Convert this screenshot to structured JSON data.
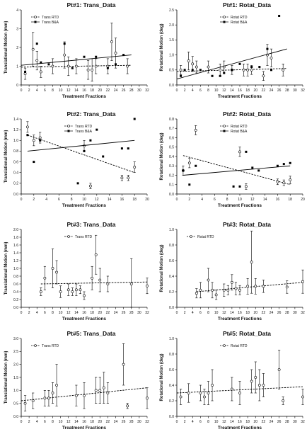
{
  "chart_data": [
    {
      "type": "scatter",
      "title": "Pt#1: Trans_Data",
      "xlabel": "Treatment Fractions",
      "ylabel": "Translational Motion (mm)",
      "xlim": [
        0,
        32
      ],
      "ylim": [
        0,
        4
      ],
      "xticks": [
        0,
        2,
        4,
        6,
        8,
        10,
        12,
        14,
        16,
        18,
        20,
        22,
        24,
        26,
        28,
        30,
        32
      ],
      "yticks": [
        0,
        1,
        2,
        3,
        4
      ],
      "legend": "top-left",
      "series": [
        {
          "name": "Trans RTD",
          "marker": "open-circle",
          "x": [
            1,
            3,
            4,
            5,
            8,
            11,
            12,
            14,
            17,
            18,
            19,
            22,
            23,
            24,
            27
          ],
          "y": [
            0.6,
            1.9,
            1.3,
            0.7,
            1.0,
            1.6,
            1.0,
            1.0,
            0.8,
            0.8,
            1.0,
            1.0,
            2.3,
            1.7,
            1.0
          ],
          "err": [
            0.3,
            0.9,
            0.5,
            0.3,
            0.4,
            0.7,
            0.5,
            0.4,
            0.5,
            0.6,
            0.4,
            0.4,
            1.0,
            0.8,
            0.4
          ],
          "trend": [
            [
              0,
              0.95
            ],
            [
              28,
              1.05
            ]
          ],
          "trend_style": "dashed"
        },
        {
          "name": "Trans B&A",
          "marker": "filled-square",
          "x": [
            1,
            4,
            5,
            7,
            11,
            13,
            16,
            19,
            22,
            24,
            26
          ],
          "y": [
            0.7,
            2.2,
            1.2,
            1.1,
            2.2,
            0.9,
            1.5,
            1.5,
            0.9,
            1.1,
            1.6
          ],
          "trend": [
            [
              0,
              1.05
            ],
            [
              28,
              1.6
            ]
          ],
          "trend_style": "solid"
        }
      ]
    },
    {
      "type": "scatter",
      "title": "Pt#1: Rotat_Data",
      "xlabel": "Treatment Fractions",
      "ylabel": "Rotational Motion (deg)",
      "xlim": [
        0,
        32
      ],
      "ylim": [
        0,
        2.5
      ],
      "xticks": [
        0,
        2,
        4,
        6,
        8,
        10,
        12,
        14,
        16,
        18,
        20,
        22,
        24,
        26,
        28,
        30,
        32
      ],
      "yticks": [
        0.0,
        0.5,
        1.0,
        1.5,
        2.0,
        2.5
      ],
      "legend": "top-center",
      "series": [
        {
          "name": "Rotat RTD",
          "marker": "open-circle",
          "x": [
            1,
            3,
            4,
            5,
            8,
            11,
            12,
            14,
            17,
            18,
            19,
            22,
            23,
            24,
            27
          ],
          "y": [
            0.5,
            0.8,
            0.7,
            0.6,
            0.6,
            0.5,
            0.6,
            0.5,
            0.5,
            0.5,
            0.5,
            0.3,
            1.0,
            0.9,
            0.5
          ],
          "err": [
            0.15,
            0.3,
            0.25,
            0.2,
            0.2,
            0.2,
            0.2,
            0.15,
            0.2,
            0.2,
            0.15,
            0.15,
            0.35,
            0.3,
            0.2
          ],
          "trend": [
            [
              0,
              0.45
            ],
            [
              28,
              0.55
            ]
          ],
          "trend_style": "dashed"
        },
        {
          "name": "Rotat B&A",
          "marker": "filled-square",
          "x": [
            1,
            2,
            4,
            6,
            9,
            11,
            12,
            14,
            16,
            19,
            21,
            23,
            24,
            26
          ],
          "y": [
            0.3,
            0.5,
            0.5,
            0.5,
            0.3,
            0.3,
            0.4,
            0.5,
            0.7,
            0.6,
            0.6,
            1.2,
            0.5,
            2.3
          ],
          "trend": [
            [
              0,
              0.2
            ],
            [
              28,
              1.2
            ]
          ],
          "trend_style": "solid"
        }
      ]
    },
    {
      "type": "scatter",
      "title": "Pt#2: Trans_Data",
      "xlabel": "Treatment Fractions",
      "ylabel": "Translational Motion (mm)",
      "xlim": [
        0,
        20
      ],
      "ylim": [
        0,
        1.4
      ],
      "xticks": [
        0,
        2,
        4,
        6,
        8,
        10,
        12,
        14,
        16,
        18,
        20
      ],
      "yticks": [
        0.0,
        0.2,
        0.4,
        0.6,
        0.8,
        1.0,
        1.2,
        1.4
      ],
      "legend": "top-center",
      "series": [
        {
          "name": "Trans RTD",
          "marker": "open-circle",
          "x": [
            1,
            2,
            3,
            10,
            11,
            16,
            17,
            18
          ],
          "y": [
            1.25,
            1.0,
            1.05,
            0.9,
            0.15,
            0.3,
            0.3,
            0.5
          ],
          "err": [
            0.1,
            0.1,
            0.1,
            0.1,
            0.05,
            0.05,
            0.05,
            0.1
          ],
          "trend": [
            [
              1,
              1.1
            ],
            [
              18,
              0.4
            ]
          ],
          "trend_style": "dashed"
        },
        {
          "name": "Trans B&A",
          "marker": "filled-square",
          "x": [
            1,
            2,
            3,
            9,
            10,
            11,
            12,
            13,
            16,
            17,
            18
          ],
          "y": [
            1.1,
            0.6,
            1.0,
            0.2,
            0.8,
            1.0,
            1.2,
            0.7,
            0.85,
            0.85,
            1.45
          ],
          "trend": [
            [
              1,
              0.8
            ],
            [
              18,
              1.0
            ]
          ],
          "trend_style": "solid"
        }
      ]
    },
    {
      "type": "scatter",
      "title": "Pt#2: Rotat_Data",
      "xlabel": "Treatment Fractions",
      "ylabel": "Rotational Motion (deg)",
      "xlim": [
        0,
        20
      ],
      "ylim": [
        0,
        0.8
      ],
      "xticks": [
        0,
        2,
        4,
        6,
        8,
        10,
        12,
        14,
        16,
        18,
        20
      ],
      "yticks": [
        0.0,
        0.1,
        0.2,
        0.3,
        0.4,
        0.5,
        0.6,
        0.7,
        0.8
      ],
      "legend": "top-center",
      "series": [
        {
          "name": "Rotat RTD",
          "marker": "open-circle",
          "x": [
            1,
            2,
            3,
            10,
            11,
            16,
            17,
            18
          ],
          "y": [
            0.25,
            0.33,
            0.68,
            0.45,
            0.08,
            0.13,
            0.12,
            0.15
          ],
          "err": [
            0.05,
            0.05,
            0.05,
            0.05,
            0.03,
            0.03,
            0.03,
            0.04
          ],
          "trend": [
            [
              1,
              0.41
            ],
            [
              18,
              0.1
            ]
          ],
          "trend_style": "dashed"
        },
        {
          "name": "Rotat B&A",
          "marker": "filled-square",
          "x": [
            1,
            2,
            3,
            9,
            10,
            11,
            12,
            13,
            16,
            17,
            18
          ],
          "y": [
            0.25,
            0.1,
            0.3,
            0.08,
            0.08,
            0.45,
            0.28,
            0.25,
            0.3,
            0.32,
            0.33
          ],
          "trend": [
            [
              1,
              0.2
            ],
            [
              18,
              0.3
            ]
          ],
          "trend_style": "solid"
        }
      ]
    },
    {
      "type": "scatter",
      "title": "Pt#3: Trans_Data",
      "xlabel": "Treatment Fractions",
      "ylabel": "Translational Motion (mm)",
      "xlim": [
        0,
        32
      ],
      "ylim": [
        0,
        2.0
      ],
      "xticks": [
        0,
        2,
        4,
        6,
        8,
        10,
        12,
        14,
        16,
        18,
        20,
        22,
        24,
        26,
        28,
        30,
        32
      ],
      "yticks": [
        0.0,
        0.2,
        0.4,
        0.6,
        0.8,
        1.0,
        1.2,
        1.4,
        1.6,
        1.8,
        2.0
      ],
      "legend": "top-center",
      "series": [
        {
          "name": "Trans RTD",
          "marker": "open-circle",
          "x": [
            5,
            6,
            8,
            9,
            10,
            12,
            13,
            14,
            15,
            16,
            18,
            19,
            20,
            22,
            28,
            32
          ],
          "y": [
            0.4,
            0.75,
            1.0,
            0.9,
            0.4,
            0.45,
            0.4,
            0.45,
            0.45,
            0.3,
            0.75,
            1.35,
            0.7,
            0.6,
            0.6,
            0.55
          ],
          "err": [
            0.1,
            0.3,
            0.5,
            0.3,
            0.15,
            0.15,
            0.1,
            0.15,
            0.1,
            0.1,
            0.3,
            0.5,
            0.3,
            0.2,
            0.65,
            0.2
          ],
          "trend": [
            [
              5,
              0.6
            ],
            [
              32,
              0.65
            ]
          ],
          "trend_style": "dashed"
        }
      ]
    },
    {
      "type": "scatter",
      "title": "Pt#3: Rotat_Data",
      "xlabel": "Treatment Fractions",
      "ylabel": "Rotational Motion (deg)",
      "xlim": [
        0,
        32
      ],
      "ylim": [
        0,
        1.0
      ],
      "xticks": [
        0,
        2,
        4,
        6,
        8,
        10,
        12,
        14,
        16,
        18,
        20,
        22,
        24,
        26,
        28,
        30,
        32
      ],
      "yticks": [
        0.0,
        0.2,
        0.4,
        0.6,
        0.8,
        1.0
      ],
      "legend": "top-left",
      "series": [
        {
          "name": "Rotat RTD",
          "marker": "open-circle",
          "x": [
            5,
            6,
            8,
            9,
            10,
            12,
            13,
            14,
            15,
            16,
            18,
            19,
            20,
            22,
            28,
            32
          ],
          "y": [
            0.18,
            0.22,
            0.35,
            0.22,
            0.16,
            0.22,
            0.22,
            0.32,
            0.24,
            0.22,
            0.27,
            0.58,
            0.27,
            0.27,
            0.26,
            0.33
          ],
          "err": [
            0.06,
            0.1,
            0.15,
            0.1,
            0.06,
            0.08,
            0.06,
            0.1,
            0.08,
            0.06,
            0.1,
            0.4,
            0.1,
            0.08,
            0.08,
            0.15
          ],
          "trend": [
            [
              5,
              0.2
            ],
            [
              32,
              0.32
            ]
          ],
          "trend_style": "dashed"
        }
      ]
    },
    {
      "type": "scatter",
      "title": "Pt#5: Trans_Data",
      "xlabel": "Treatment Fractions",
      "ylabel": "Translational Motion (mm)",
      "xlim": [
        0,
        32
      ],
      "ylim": [
        0,
        3.0
      ],
      "xticks": [
        0,
        2,
        4,
        6,
        8,
        10,
        12,
        14,
        16,
        18,
        20,
        22,
        24,
        26,
        28,
        30,
        32
      ],
      "yticks": [
        0.0,
        0.5,
        1.0,
        1.5,
        2.0,
        2.5,
        3.0
      ],
      "legend": "top-left",
      "series": [
        {
          "name": "Trans RTD",
          "marker": "open-circle",
          "x": [
            1,
            3,
            6,
            7,
            8,
            9,
            14,
            16,
            19,
            20,
            21,
            22,
            26,
            27,
            32
          ],
          "y": [
            0.5,
            0.6,
            0.7,
            0.7,
            0.9,
            1.2,
            0.8,
            0.8,
            1.0,
            1.0,
            1.1,
            0.9,
            2.0,
            0.4,
            0.7
          ],
          "err": [
            0.3,
            0.3,
            0.3,
            0.3,
            0.4,
            0.8,
            0.4,
            0.5,
            0.5,
            0.5,
            0.6,
            0.4,
            0.8,
            0.1,
            0.4
          ],
          "trend": [
            [
              0,
              0.6
            ],
            [
              32,
              1.1
            ]
          ],
          "trend_style": "dashed"
        }
      ]
    },
    {
      "type": "scatter",
      "title": "Pt#5: Rotat_Data",
      "xlabel": "Treatment Fractions",
      "ylabel": "Rotational Motion (deg)",
      "xlim": [
        0,
        32
      ],
      "ylim": [
        0,
        1.0
      ],
      "xticks": [
        0,
        2,
        4,
        6,
        8,
        10,
        12,
        14,
        16,
        18,
        20,
        22,
        24,
        26,
        28,
        30,
        32
      ],
      "yticks": [
        0.0,
        0.2,
        0.4,
        0.6,
        0.8,
        1.0
      ],
      "legend": "top-center",
      "series": [
        {
          "name": "Rotat RTD",
          "marker": "open-circle",
          "x": [
            1,
            3,
            6,
            7,
            8,
            9,
            14,
            16,
            19,
            20,
            21,
            22,
            26,
            27,
            32
          ],
          "y": [
            0.25,
            0.3,
            0.3,
            0.25,
            0.3,
            0.4,
            0.35,
            0.3,
            0.45,
            0.5,
            0.4,
            0.4,
            0.6,
            0.2,
            0.25
          ],
          "err": [
            0.1,
            0.12,
            0.1,
            0.1,
            0.15,
            0.2,
            0.15,
            0.15,
            0.15,
            0.2,
            0.2,
            0.15,
            0.25,
            0.05,
            0.1
          ],
          "trend": [
            [
              0,
              0.3
            ],
            [
              32,
              0.38
            ]
          ],
          "trend_style": "dashed"
        }
      ]
    }
  ]
}
